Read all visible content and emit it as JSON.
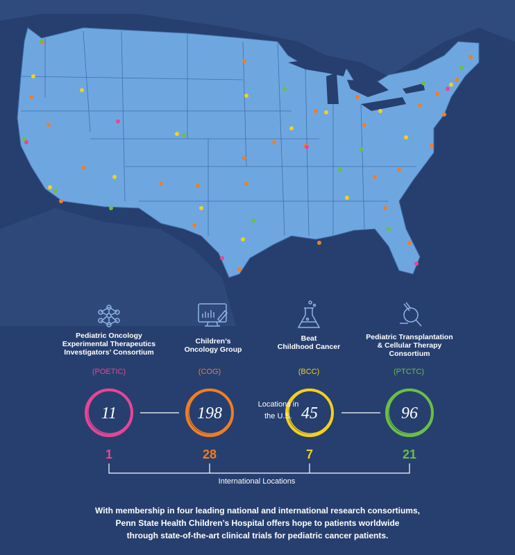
{
  "colors": {
    "background": "#273f6e",
    "states": "#6ea7e0",
    "poetic": "#e64697",
    "cog": "#f07e26",
    "bcc": "#f4cf20",
    "ptctc": "#6bbf45"
  },
  "consortia": [
    {
      "id": "poetic",
      "name": "Pediatric Oncology\nExperimental Therapeutics\nInvestigators’ Consortium",
      "abbr": "(POETIC)",
      "us_locations": "11",
      "international": "1",
      "icon": "network-icon",
      "color": "#e64697"
    },
    {
      "id": "cog",
      "name": "Children’s\nOncology Group",
      "abbr": "(COG)",
      "us_locations": "198",
      "international": "28",
      "icon": "chart-monitor-icon",
      "color": "#f07e26"
    },
    {
      "id": "bcc",
      "name": "Beat\nChildhood Cancer",
      "abbr": "(BCC)",
      "us_locations": "45",
      "international": "7",
      "icon": "flask-icon",
      "color": "#f4cf20"
    },
    {
      "id": "ptctc",
      "name": "Pediatric Transplantation\n& Cellular Therapy\nConsortium",
      "abbr": "(PTCTC)",
      "us_locations": "96",
      "international": "21",
      "icon": "microscope-icon",
      "color": "#6bbf45"
    }
  ],
  "us_label": "Locations in\nthe U.S.",
  "international_label": "International Locations",
  "footer": "With membership in four leading national and international research consortiums,\nPenn State Health Children’s Hospital offers hope to patients worldwide\nthrough state-of-the-art clinical trials for pediatric cancer patients."
}
